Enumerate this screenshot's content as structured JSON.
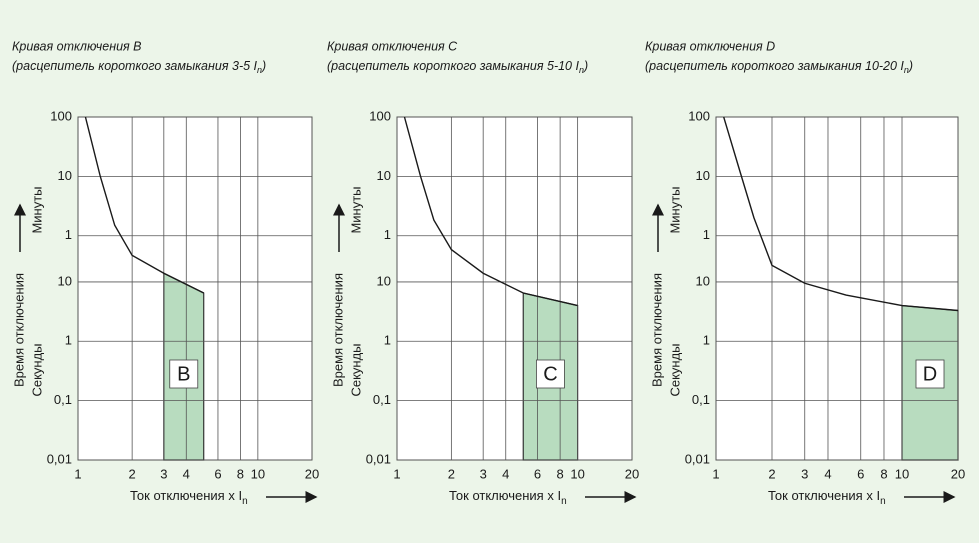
{
  "chart_data": [
    {
      "type": "line",
      "title": "Кривая отключения B",
      "subtitle": "(расцепитель короткого замыкания 3-5 I",
      "subtitle_subscript": "n",
      "subtitle_end": ")",
      "x_label": "Ток отключения x I",
      "x_label_subscript": "n",
      "y_label": "Время отключения",
      "y_label_upper": "Минуты",
      "y_label_lower": "Секунды",
      "x": [
        1.1,
        1.33,
        1.6,
        2,
        3,
        5
      ],
      "series": [
        {
          "values": [
            6000,
            600,
            90,
            28,
            14,
            6.5
          ]
        }
      ],
      "color": "#1a1a1a",
      "zone": {
        "label": "B",
        "x": [
          3,
          5
        ],
        "color": "#b8dcbf"
      },
      "xlim": [
        1,
        20
      ],
      "ylim": [
        0.01,
        6000
      ],
      "log_x": true,
      "log_y": true,
      "grid": true,
      "xticks": [
        1,
        2,
        3,
        4,
        6,
        8,
        10,
        20
      ],
      "yticks": [
        {
          "value": 6000,
          "label": "100"
        },
        {
          "value": 600,
          "label": "10"
        },
        {
          "value": 60,
          "label": "1"
        },
        10,
        1,
        {
          "value": 0.1,
          "label": "0,1"
        },
        {
          "value": 0.01,
          "label": "0,01"
        }
      ]
    },
    {
      "type": "line",
      "title": "Кривая отключения C",
      "subtitle": "(расцепитель короткого замыкания 5-10 I",
      "subtitle_subscript": "n",
      "subtitle_end": ")",
      "x_label": "Ток отключения x I",
      "x_label_subscript": "n",
      "y_label": "Время отключения",
      "y_label_upper": "Минуты",
      "y_label_lower": "Секунды",
      "x": [
        1.1,
        1.35,
        1.6,
        2,
        3,
        5,
        10
      ],
      "series": [
        {
          "values": [
            6000,
            600,
            110,
            35,
            14,
            6.5,
            4
          ]
        }
      ],
      "color": "#1a1a1a",
      "zone": {
        "label": "C",
        "x": [
          5,
          10
        ],
        "color": "#b8dcbf"
      },
      "xlim": [
        1,
        20
      ],
      "ylim": [
        0.01,
        6000
      ],
      "log_x": true,
      "log_y": true,
      "grid": true,
      "xticks": [
        1,
        2,
        3,
        4,
        6,
        8,
        10,
        20
      ],
      "yticks": [
        {
          "value": 6000,
          "label": "100"
        },
        {
          "value": 600,
          "label": "10"
        },
        {
          "value": 60,
          "label": "1"
        },
        10,
        1,
        {
          "value": 0.1,
          "label": "0,1"
        },
        {
          "value": 0.01,
          "label": "0,01"
        }
      ]
    },
    {
      "type": "line",
      "title": "Кривая отключения D",
      "subtitle": "(расцепитель короткого замыкания 10-20 I",
      "subtitle_subscript": "n",
      "subtitle_end": ")",
      "x_label": "Ток отключения x I",
      "x_label_subscript": "n",
      "y_label": "Время отключения",
      "y_label_upper": "Минуты",
      "y_label_lower": "Секунды",
      "x": [
        1.1,
        1.35,
        1.6,
        2,
        3,
        5,
        10,
        20
      ],
      "series": [
        {
          "values": [
            6000,
            700,
            120,
            19,
            9.5,
            6,
            4,
            3.3
          ]
        }
      ],
      "color": "#1a1a1a",
      "zone": {
        "label": "D",
        "x": [
          10,
          20
        ],
        "color": "#b8dcbf"
      },
      "xlim": [
        1,
        20
      ],
      "ylim": [
        0.01,
        6000
      ],
      "log_x": true,
      "log_y": true,
      "grid": true,
      "xticks": [
        1,
        2,
        3,
        4,
        6,
        8,
        10,
        20
      ],
      "yticks": [
        {
          "value": 6000,
          "label": "100"
        },
        {
          "value": 600,
          "label": "10"
        },
        {
          "value": 60,
          "label": "1"
        },
        10,
        1,
        {
          "value": 0.1,
          "label": "0,1"
        },
        {
          "value": 0.01,
          "label": "0,01"
        }
      ]
    }
  ]
}
